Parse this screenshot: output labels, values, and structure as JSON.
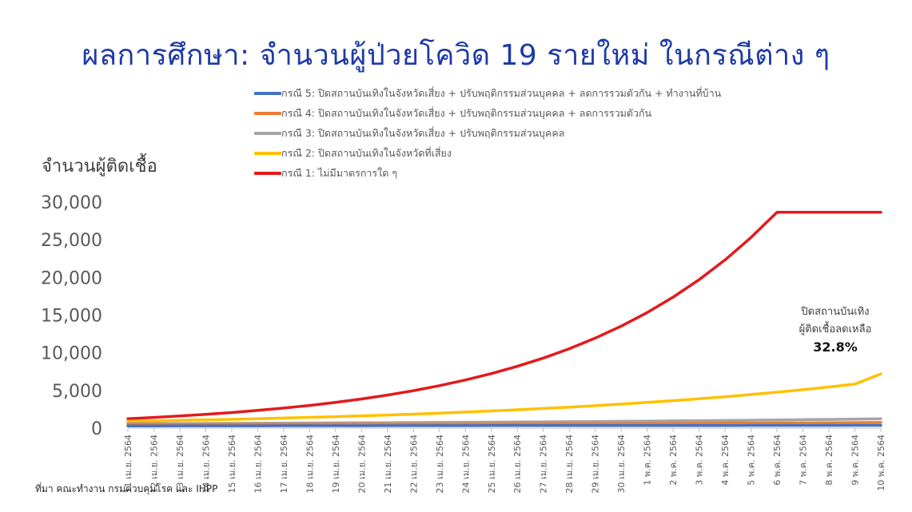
{
  "chart_data": {
    "type": "line",
    "title": "ผลการศึกษา: จำนวนผู้ป่วยโควิด 19 รายใหม่ ในกรณีต่าง ๆ",
    "ylabel": "จำนวนผู้ติดเชื้อ",
    "xlabel": "",
    "ylim": [
      0,
      30000
    ],
    "yticks": [
      0,
      5000,
      10000,
      15000,
      20000,
      25000,
      30000
    ],
    "ytick_labels": [
      "0",
      "5,000",
      "10,000",
      "15,000",
      "20,000",
      "25,000",
      "30,000"
    ],
    "grid": false,
    "legend_position": "top",
    "categories": [
      "11 เม.ย. 2564",
      "12 เม.ย. 2564",
      "13 เม.ย. 2564",
      "14 เม.ย. 2564",
      "15 เม.ย. 2564",
      "16 เม.ย. 2564",
      "17 เม.ย. 2564",
      "18 เม.ย. 2564",
      "19 เม.ย. 2564",
      "20 เม.ย. 2564",
      "21 เม.ย. 2564",
      "22 เม.ย. 2564",
      "23 เม.ย. 2564",
      "24 เม.ย. 2564",
      "25 เม.ย. 2564",
      "26 เม.ย. 2564",
      "27 เม.ย. 2564",
      "28 เม.ย. 2564",
      "29 เม.ย. 2564",
      "30 เม.ย. 2564",
      "1 พ.ค. 2564",
      "2 พ.ค. 2564",
      "3 พ.ค. 2564",
      "4 พ.ค. 2564",
      "5 พ.ค. 2564",
      "6 พ.ค. 2564",
      "7 พ.ค. 2564",
      "8 พ.ค. 2564",
      "9 พ.ค. 2564",
      "10 พ.ค. 2564"
    ],
    "series": [
      {
        "name": "กรณี 5: ปิดสถานบันเทิงในจังหวัดเสี่ยง + ปรับพฤติกรรมส่วนบุคคล + ลดการรวมตัวกัน + ทำงานที่บ้าน",
        "color": "#4472c4",
        "values": [
          300,
          300,
          305,
          305,
          310,
          310,
          315,
          315,
          320,
          320,
          325,
          325,
          330,
          330,
          335,
          335,
          340,
          340,
          345,
          345,
          350,
          350,
          355,
          355,
          360,
          360,
          365,
          365,
          370,
          370
        ]
      },
      {
        "name": "กรณี 4: ปิดสถานบันเทิงในจังหวัดเสี่ยง + ปรับพฤติกรรมส่วนบุคคล + ลดการรวมตัวกัน",
        "color": "#ed7d31",
        "values": [
          500,
          505,
          510,
          515,
          520,
          525,
          530,
          535,
          540,
          545,
          550,
          555,
          560,
          565,
          570,
          580,
          590,
          600,
          610,
          620,
          630,
          640,
          650,
          660,
          670,
          685,
          700,
          715,
          730,
          750
        ]
      },
      {
        "name": "กรณี 3: ปิดสถานบันเทิงในจังหวัดเสี่ยง + ปรับพฤติกรรมส่วนบุคคล",
        "color": "#a5a5a5",
        "values": [
          600,
          610,
          620,
          630,
          640,
          650,
          665,
          680,
          695,
          710,
          725,
          740,
          760,
          780,
          800,
          820,
          840,
          860,
          885,
          910,
          935,
          960,
          990,
          1020,
          1050,
          1080,
          1120,
          1160,
          1200,
          1250
        ]
      },
      {
        "name": "กรณี 2: ปิดสถานบันเทิงในจังหวัดที่เสี่ยง",
        "color": "#ffc000",
        "values": [
          900,
          960,
          1030,
          1100,
          1170,
          1250,
          1340,
          1430,
          1530,
          1630,
          1740,
          1860,
          1990,
          2130,
          2280,
          2440,
          2610,
          2790,
          2980,
          3190,
          3410,
          3650,
          3900,
          4170,
          4460,
          4770,
          5100,
          5460,
          5840,
          7200
        ]
      },
      {
        "name": "กรณี 1: ไม่มีมาตรการใด ๆ",
        "color": "#e31a1c",
        "values": [
          1250,
          1420,
          1610,
          1830,
          2070,
          2350,
          2660,
          3010,
          3420,
          3870,
          4390,
          4970,
          5640,
          6390,
          7240,
          8210,
          9300,
          10540,
          11950,
          13540,
          15340,
          17390,
          19700,
          22330,
          25300,
          28650,
          28650,
          28650,
          28650,
          28650
        ]
      }
    ],
    "annotation": {
      "lines": [
        "ปิดสถานบันเทิง",
        "ผู้ติดเชื้อลดเหลือ"
      ],
      "value": "32.8%"
    }
  },
  "source": "ที่มา คณะทำงาน กรมควบคุมโรค และ IHPP"
}
